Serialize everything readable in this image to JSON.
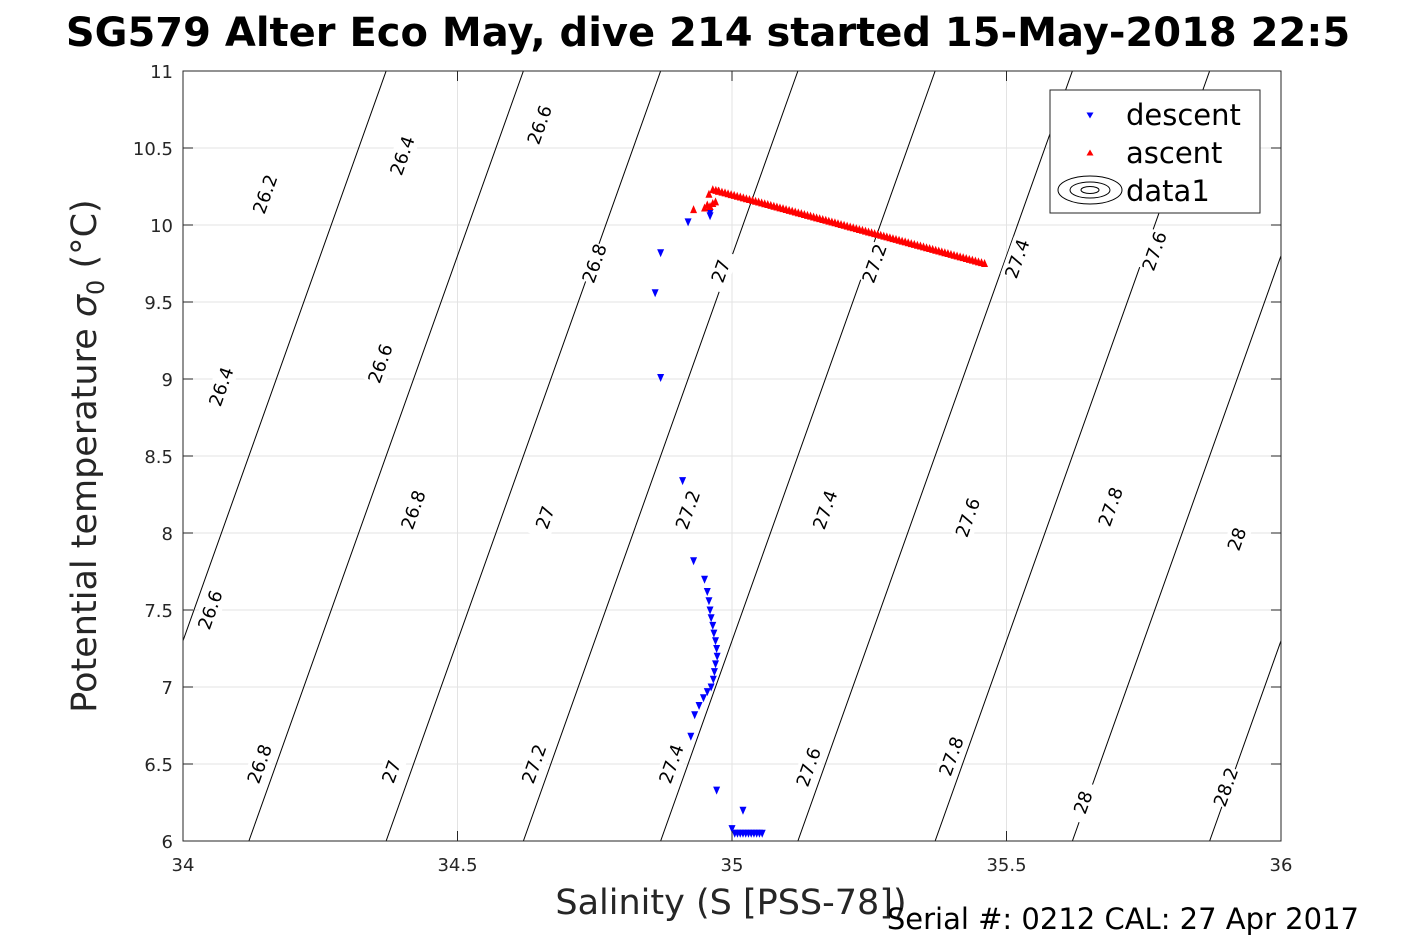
{
  "chart_data": {
    "type": "scatter",
    "title": "SG579 Alter Eco May, dive 214 started 15-May-2018 22:5",
    "xlabel": "Salinity (S [PSS-78])",
    "ylabel": "Potential temperature σ0 (°C)",
    "ylabel_main": "Potential temperature ",
    "ylabel_sigma": "σ",
    "ylabel_sub": "0",
    "ylabel_unit": " (°C)",
    "footer": "Serial #: 0212  CAL: 27 Apr 2017",
    "xlim": [
      34,
      36
    ],
    "ylim": [
      6,
      11
    ],
    "xticks": [
      34,
      34.5,
      35,
      35.5,
      36
    ],
    "xtick_labels": [
      "34",
      "34.5",
      "35",
      "35.5",
      "36"
    ],
    "yticks": [
      6,
      6.5,
      7,
      7.5,
      8,
      8.5,
      9,
      9.5,
      10,
      10.5,
      11
    ],
    "ytick_labels": [
      "6",
      "6.5",
      "7",
      "7.5",
      "8",
      "8.5",
      "9",
      "9.5",
      "10",
      "10.5",
      "11"
    ],
    "grid": true,
    "legend_position": "top-right",
    "legend": [
      "descent",
      "ascent",
      "data1"
    ],
    "colors": {
      "descent": "#0000ff",
      "ascent": "#ff0000",
      "contour": "#000000",
      "grid": "#e3e3e3"
    },
    "series": [
      {
        "name": "descent",
        "marker": "triangle-down",
        "x": [
          34.96,
          34.92,
          34.96,
          34.87,
          34.86,
          34.87,
          34.91,
          34.93,
          34.95,
          34.955,
          34.958,
          34.96,
          34.962,
          34.965,
          34.967,
          34.97,
          34.972,
          34.973,
          34.97,
          34.968,
          34.966,
          34.962,
          34.955,
          34.948,
          34.94,
          34.932,
          34.925,
          34.972,
          35.02,
          35.0,
          35.005,
          35.01,
          35.015,
          35.02,
          35.025,
          35.03,
          35.035,
          35.04,
          35.045,
          35.05,
          35.055
        ],
        "y": [
          10.06,
          10.02,
          10.08,
          9.82,
          9.56,
          9.01,
          8.34,
          7.82,
          7.7,
          7.62,
          7.56,
          7.5,
          7.45,
          7.4,
          7.35,
          7.3,
          7.25,
          7.2,
          7.15,
          7.1,
          7.05,
          7.0,
          6.97,
          6.93,
          6.88,
          6.82,
          6.68,
          6.33,
          6.2,
          6.08,
          6.05,
          6.05,
          6.05,
          6.05,
          6.05,
          6.05,
          6.05,
          6.05,
          6.05,
          6.05,
          6.05
        ]
      },
      {
        "name": "ascent",
        "marker": "triangle-up",
        "x_start": 34.965,
        "y_start": 10.23,
        "x_end": 35.46,
        "y_end": 9.75,
        "count": 90,
        "extra_x": [
          34.93,
          34.95,
          34.955,
          34.96,
          34.965,
          34.97,
          34.975,
          34.958
        ],
        "extra_y": [
          10.1,
          10.11,
          10.13,
          10.12,
          10.14,
          10.15,
          10.22,
          10.2
        ]
      }
    ],
    "contour_levels": [
      26.2,
      26.4,
      26.6,
      26.8,
      27,
      27.2,
      27.4,
      27.6,
      27.8,
      28,
      28.2
    ],
    "contour_label_values": [
      "26.2",
      "26.4",
      "26.6",
      "26.8",
      "27",
      "27.2",
      "27.4",
      "27.6",
      "27.8",
      "28",
      "28.2"
    ],
    "contour_model": {
      "sigma_ref": 26.2,
      "s_at_6": 33.87,
      "s_per_level": 0.25,
      "slope_ds_dt": 0.1
    },
    "contour_labels": [
      {
        "text": "26.2",
        "s": 34.15,
        "t": 10.2
      },
      {
        "text": "26.4",
        "s": 34.4,
        "t": 10.45
      },
      {
        "text": "26.6",
        "s": 34.65,
        "t": 10.65
      },
      {
        "text": "26.4",
        "s": 34.07,
        "t": 8.95
      },
      {
        "text": "26.6",
        "s": 34.36,
        "t": 9.1
      },
      {
        "text": "26.8",
        "s": 34.75,
        "t": 9.75
      },
      {
        "text": "27",
        "s": 34.98,
        "t": 9.7
      },
      {
        "text": "27.2",
        "s": 35.26,
        "t": 9.75
      },
      {
        "text": "27.4",
        "s": 35.52,
        "t": 9.78
      },
      {
        "text": "27.6",
        "s": 35.77,
        "t": 9.83
      },
      {
        "text": "26.6",
        "s": 34.05,
        "t": 7.5
      },
      {
        "text": "26.8",
        "s": 34.42,
        "t": 8.15
      },
      {
        "text": "27",
        "s": 34.66,
        "t": 8.1
      },
      {
        "text": "27.2",
        "s": 34.92,
        "t": 8.15
      },
      {
        "text": "27.4",
        "s": 35.17,
        "t": 8.15
      },
      {
        "text": "27.6",
        "s": 35.43,
        "t": 8.1
      },
      {
        "text": "27.8",
        "s": 35.69,
        "t": 8.17
      },
      {
        "text": "28",
        "s": 35.92,
        "t": 7.96
      },
      {
        "text": "26.8",
        "s": 34.14,
        "t": 6.5
      },
      {
        "text": "27",
        "s": 34.38,
        "t": 6.45
      },
      {
        "text": "27.2",
        "s": 34.64,
        "t": 6.5
      },
      {
        "text": "27.4",
        "s": 34.89,
        "t": 6.5
      },
      {
        "text": "27.6",
        "s": 35.14,
        "t": 6.48
      },
      {
        "text": "27.8",
        "s": 35.4,
        "t": 6.55
      },
      {
        "text": "28",
        "s": 35.64,
        "t": 6.25
      },
      {
        "text": "28.2",
        "s": 35.9,
        "t": 6.35
      }
    ]
  }
}
